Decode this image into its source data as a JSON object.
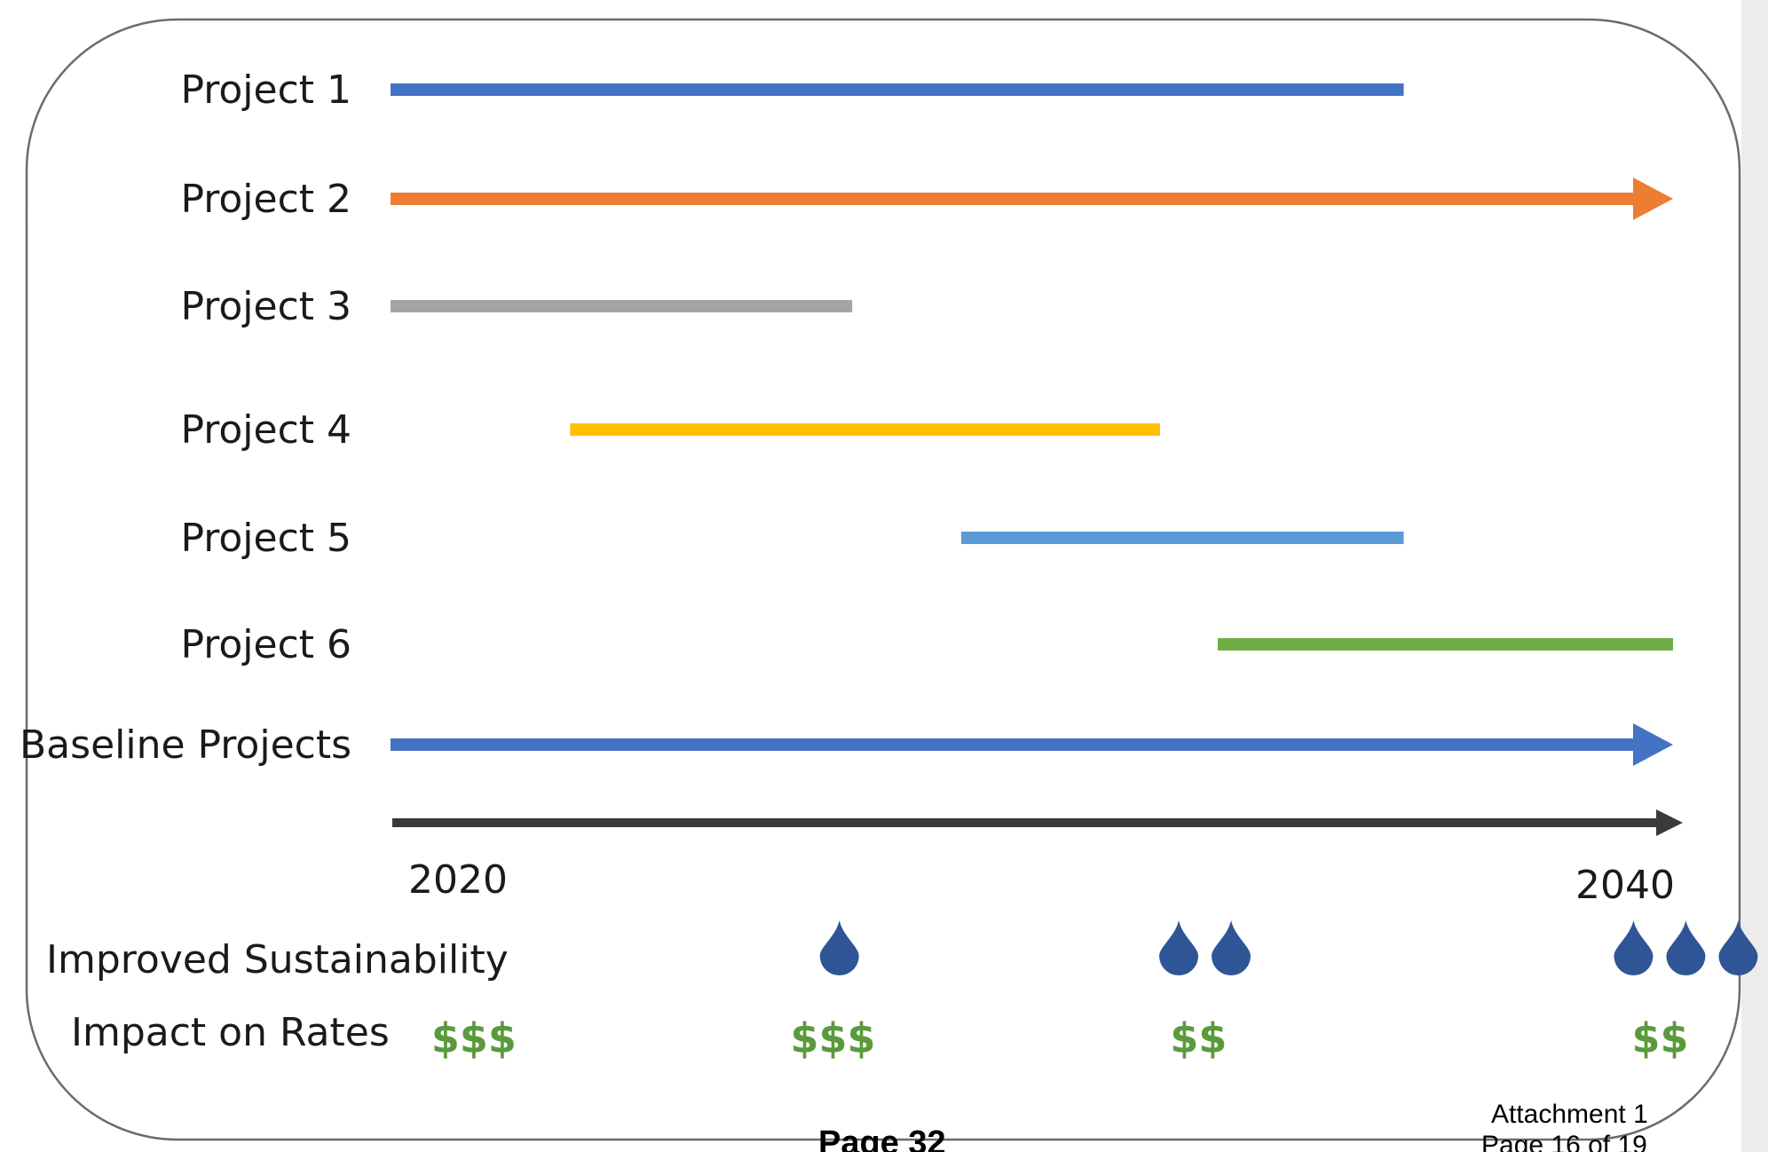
{
  "projects": [
    {
      "label": "Project 1",
      "start_year": 2020,
      "end_year": 2035.8,
      "color": "#4472c4",
      "arrow": false
    },
    {
      "label": "Project 2",
      "start_year": 2020,
      "end_year": 2040,
      "color": "#ed7d31",
      "arrow": true
    },
    {
      "label": "Project 3",
      "start_year": 2020,
      "end_year": 2027.2,
      "color": "#a5a5a5",
      "arrow": false
    },
    {
      "label": "Project 4",
      "start_year": 2022.8,
      "end_year": 2032,
      "color": "#ffc000",
      "arrow": false
    },
    {
      "label": "Project 5",
      "start_year": 2028.9,
      "end_year": 2035.8,
      "color": "#5b9bd5",
      "arrow": false
    },
    {
      "label": "Project 6",
      "start_year": 2032.9,
      "end_year": 2040,
      "color": "#70ad47",
      "arrow": false
    },
    {
      "label": "Baseline Projects",
      "start_year": 2020,
      "end_year": 2040,
      "color": "#4472c4",
      "arrow": true
    }
  ],
  "axis": {
    "start_label": "2020",
    "end_label": "2040",
    "color": "#3a3a3a"
  },
  "sustainability": {
    "label": "Improved Sustainability",
    "drop_color": "#2f5597",
    "groups": [
      {
        "drops": 1,
        "at_year": 2027.0
      },
      {
        "drops": 2,
        "at_year": 2032.7
      },
      {
        "drops": 3,
        "at_year": 2040.2
      }
    ]
  },
  "rates": {
    "label": "Impact on Rates",
    "color": "#5a9a3c",
    "items": [
      {
        "text": "$$$",
        "at_year": 2021.3
      },
      {
        "text": "$$$",
        "at_year": 2026.9
      },
      {
        "text": "$$",
        "at_year": 2032.6
      },
      {
        "text": "$$",
        "at_year": 2039.8
      }
    ]
  },
  "footer": {
    "page_text": "Page 32",
    "attachment_line1": "Attachment 1",
    "attachment_line2": "Page 16 of 19"
  }
}
